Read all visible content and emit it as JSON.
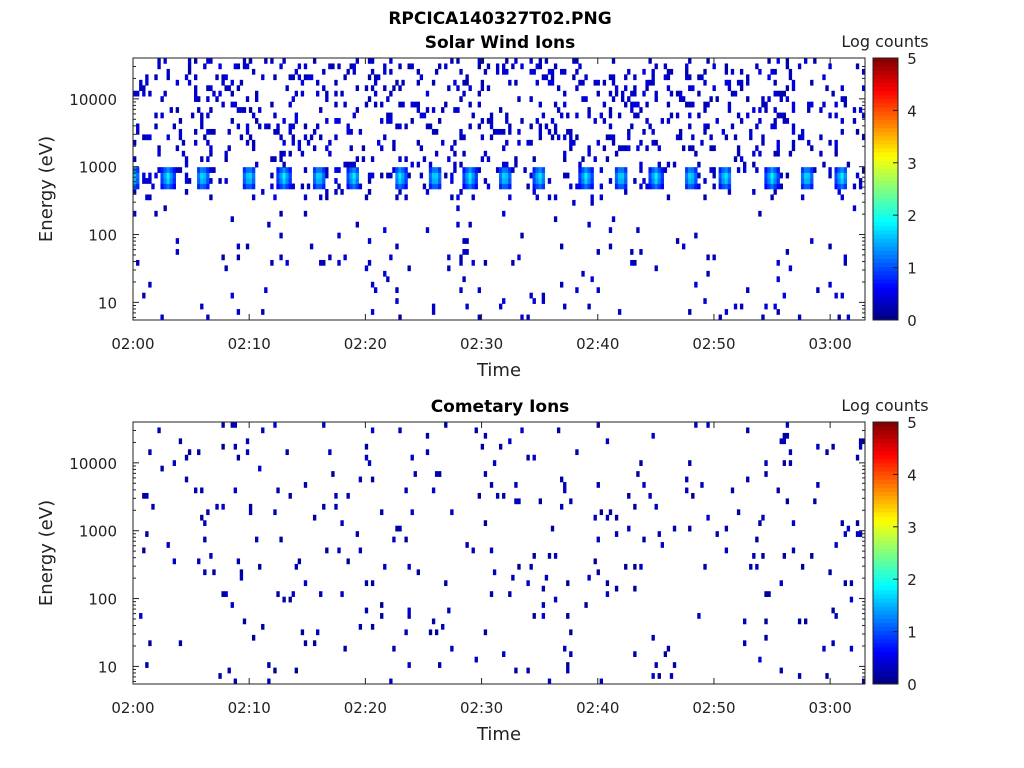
{
  "figure_title": "RPCICA140327T02.PNG",
  "chart_data": [
    {
      "type": "heatmap",
      "title": "Solar Wind Ions",
      "xlabel": "Time",
      "ylabel": "Energy (eV)",
      "y_scale": "log",
      "x_ticks": [
        "02:00",
        "02:10",
        "02:20",
        "02:30",
        "02:40",
        "02:50",
        "03:00"
      ],
      "xlim": [
        "02:00",
        "03:03"
      ],
      "y_ticks": [
        "10",
        "100",
        "1000",
        "10000"
      ],
      "ylim": [
        5.5,
        40000
      ],
      "colorbar": {
        "label": "Log counts",
        "ticks": [
          "0",
          "1",
          "2",
          "3",
          "4",
          "5"
        ],
        "range": [
          0,
          5
        ],
        "colormap": "jet"
      },
      "peak_times": [
        "02:00",
        "02:03",
        "02:06",
        "02:10",
        "02:13",
        "02:16",
        "02:19",
        "02:23",
        "02:26",
        "02:29",
        "02:32",
        "02:35",
        "02:39",
        "02:42",
        "02:45",
        "02:48",
        "02:51",
        "02:55",
        "02:58",
        "03:01"
      ],
      "peak_energy_eV": 700,
      "peak_log_counts": 2.0,
      "background_log_counts": 0.2
    },
    {
      "type": "heatmap",
      "title": "Cometary Ions",
      "xlabel": "Time",
      "ylabel": "Energy (eV)",
      "y_scale": "log",
      "x_ticks": [
        "02:00",
        "02:10",
        "02:20",
        "02:30",
        "02:40",
        "02:50",
        "03:00"
      ],
      "xlim": [
        "02:00",
        "03:03"
      ],
      "y_ticks": [
        "10",
        "100",
        "1000",
        "10000"
      ],
      "ylim": [
        5.5,
        40000
      ],
      "colorbar": {
        "label": "Log counts",
        "ticks": [
          "0",
          "1",
          "2",
          "3",
          "4",
          "5"
        ],
        "range": [
          0,
          5
        ],
        "colormap": "jet"
      },
      "background_log_counts": 0.1
    }
  ]
}
